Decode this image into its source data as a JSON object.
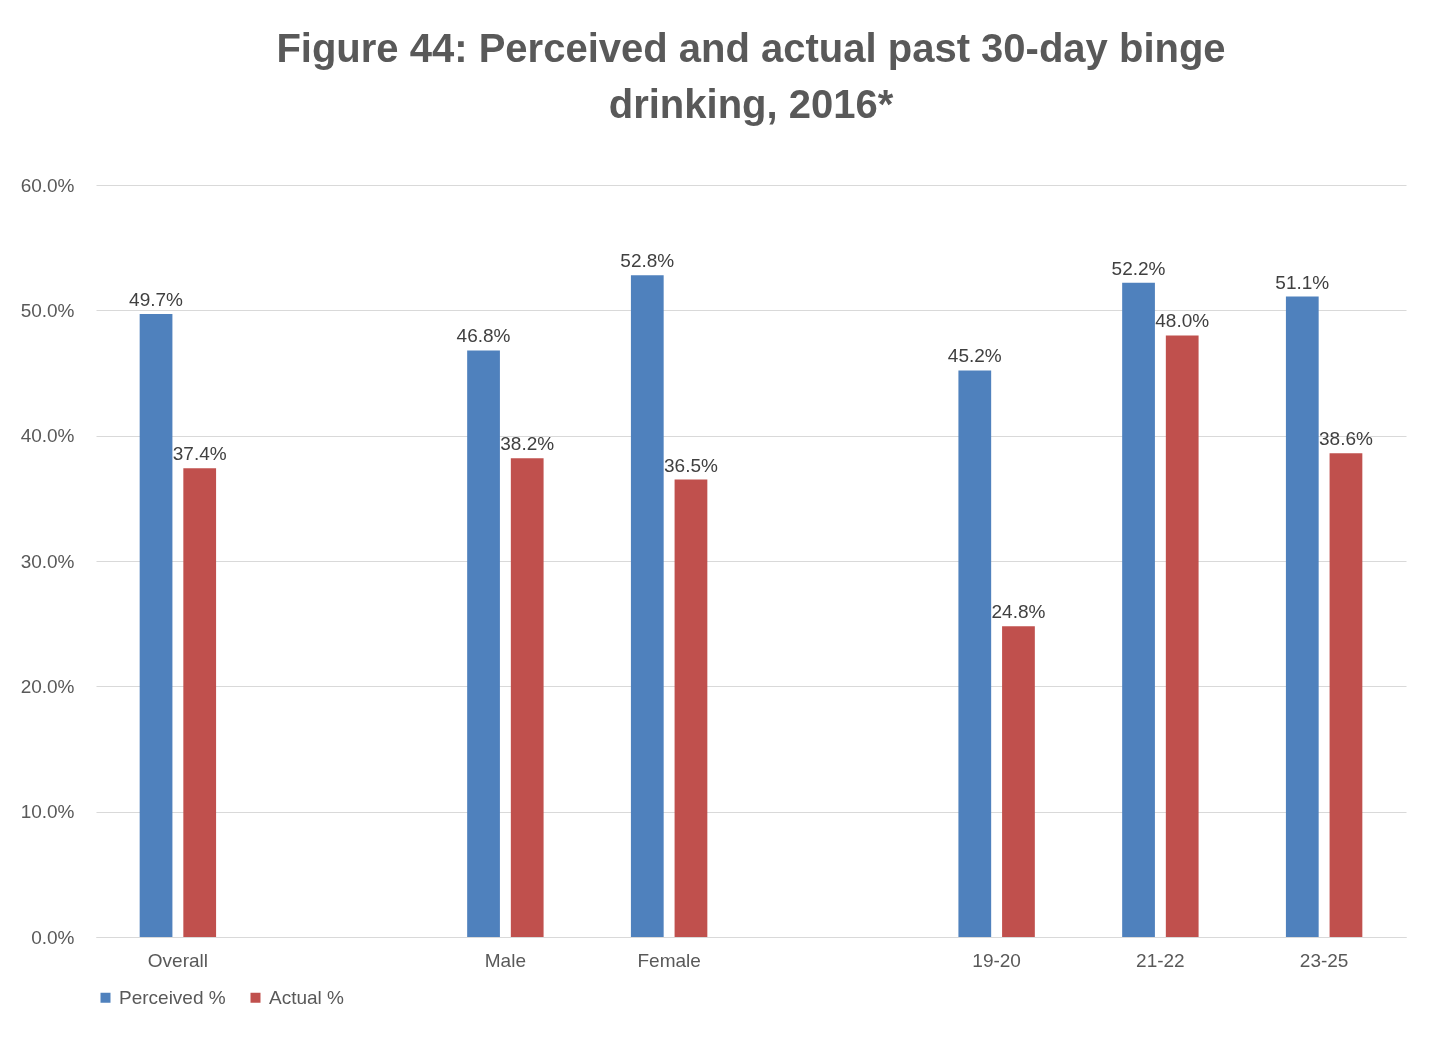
{
  "chart_data": {
    "type": "bar",
    "title": "Figure 44: Perceived and actual past 30-day binge drinking, 2016*",
    "categories": [
      "Overall",
      null,
      "Male",
      "Female",
      null,
      "19-20",
      "21-22",
      "23-25"
    ],
    "series": [
      {
        "name": "Perceived %",
        "color": "#4f81bd",
        "values": [
          49.7,
          null,
          46.8,
          52.8,
          null,
          45.2,
          52.2,
          51.1
        ],
        "value_labels": [
          "49.7%",
          null,
          "46.8%",
          "52.8%",
          null,
          "45.2%",
          "52.2%",
          "51.1%"
        ]
      },
      {
        "name": "Actual %",
        "color": "#c0504d",
        "values": [
          37.4,
          null,
          38.2,
          36.5,
          null,
          24.8,
          48.0,
          38.6
        ],
        "value_labels": [
          "37.4%",
          null,
          "38.2%",
          "36.5%",
          null,
          "24.8%",
          "48.0%",
          "38.6%"
        ]
      }
    ],
    "ylim": [
      0,
      60
    ],
    "yticks": [
      {
        "value": 0,
        "label": "0.0%"
      },
      {
        "value": 10,
        "label": "10.0%"
      },
      {
        "value": 20,
        "label": "20.0%"
      },
      {
        "value": 30,
        "label": "30.0%"
      },
      {
        "value": 40,
        "label": "40.0%"
      },
      {
        "value": 50,
        "label": "50.0%"
      },
      {
        "value": 60,
        "label": "60.0%"
      }
    ],
    "grid": "y",
    "legend": "bottom"
  }
}
